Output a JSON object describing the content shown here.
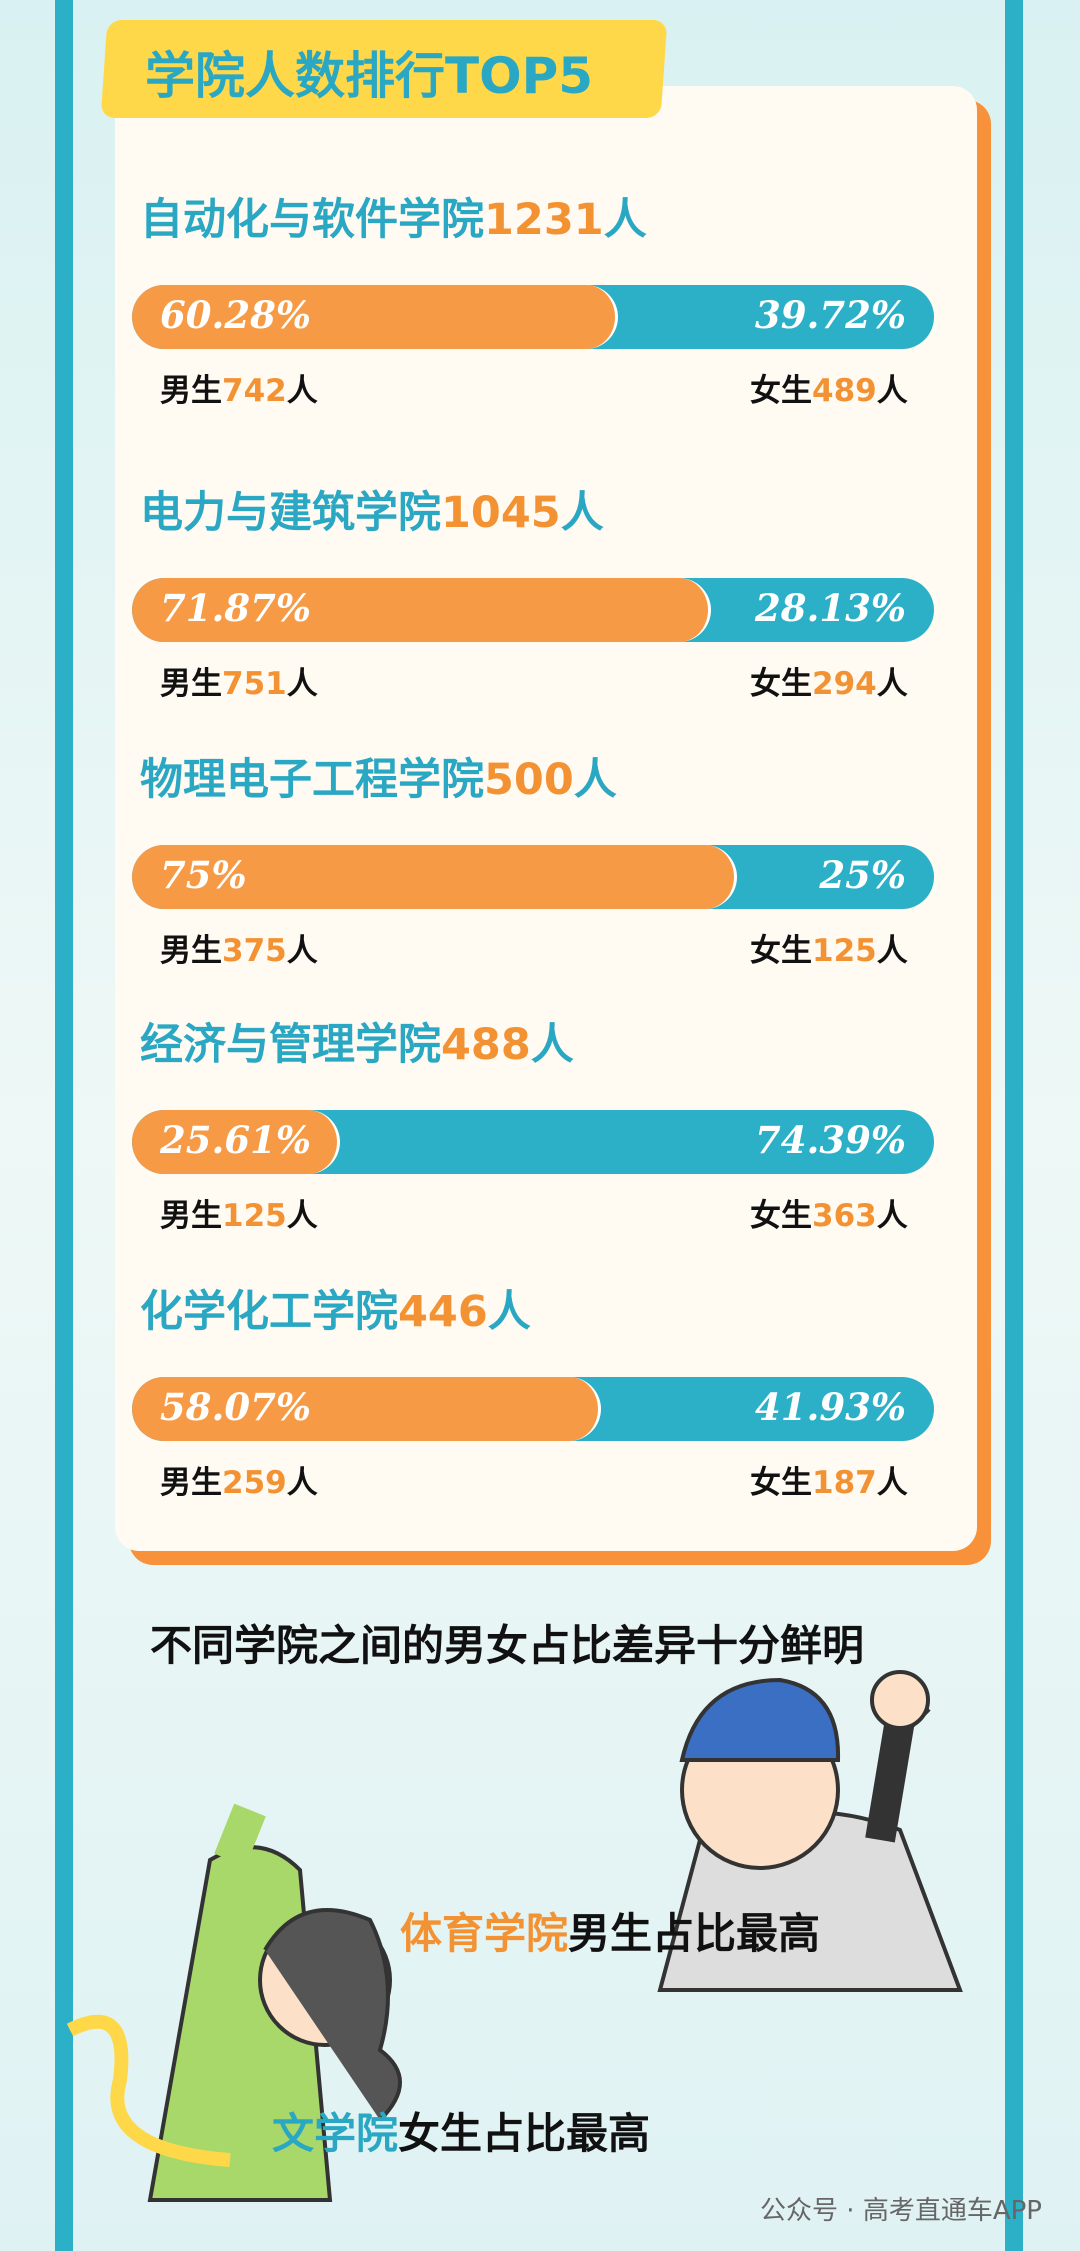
{
  "header": {
    "title": "学院人数排行TOP5"
  },
  "unit": "人",
  "male_label": "男生",
  "female_label": "女生",
  "colleges": [
    {
      "name": "自动化与软件学院",
      "total": 1231,
      "male_pct": "60.28%",
      "female_pct": "39.72%",
      "male": 742,
      "female": 489
    },
    {
      "name": "电力与建筑学院",
      "total": 1045,
      "male_pct": "71.87%",
      "female_pct": "28.13%",
      "male": 751,
      "female": 294
    },
    {
      "name": "物理电子工程学院",
      "total": 500,
      "male_pct": "75%",
      "female_pct": "25%",
      "male": 375,
      "female": 125
    },
    {
      "name": "经济与管理学院",
      "total": 488,
      "male_pct": "25.61%",
      "female_pct": "74.39%",
      "male": 125,
      "female": 363
    },
    {
      "name": "化学化工学院",
      "total": 446,
      "male_pct": "58.07%",
      "female_pct": "41.93%",
      "male": 259,
      "female": 187
    }
  ],
  "summary": "不同学院之间的男女占比差异十分鲜明",
  "notes": [
    {
      "highlight": "体育学院",
      "text": "男生占比最高"
    },
    {
      "highlight": "文学院",
      "text": "女生占比最高"
    }
  ],
  "footer": {
    "source": "公众号",
    "brand": "高考直通车APP"
  }
}
